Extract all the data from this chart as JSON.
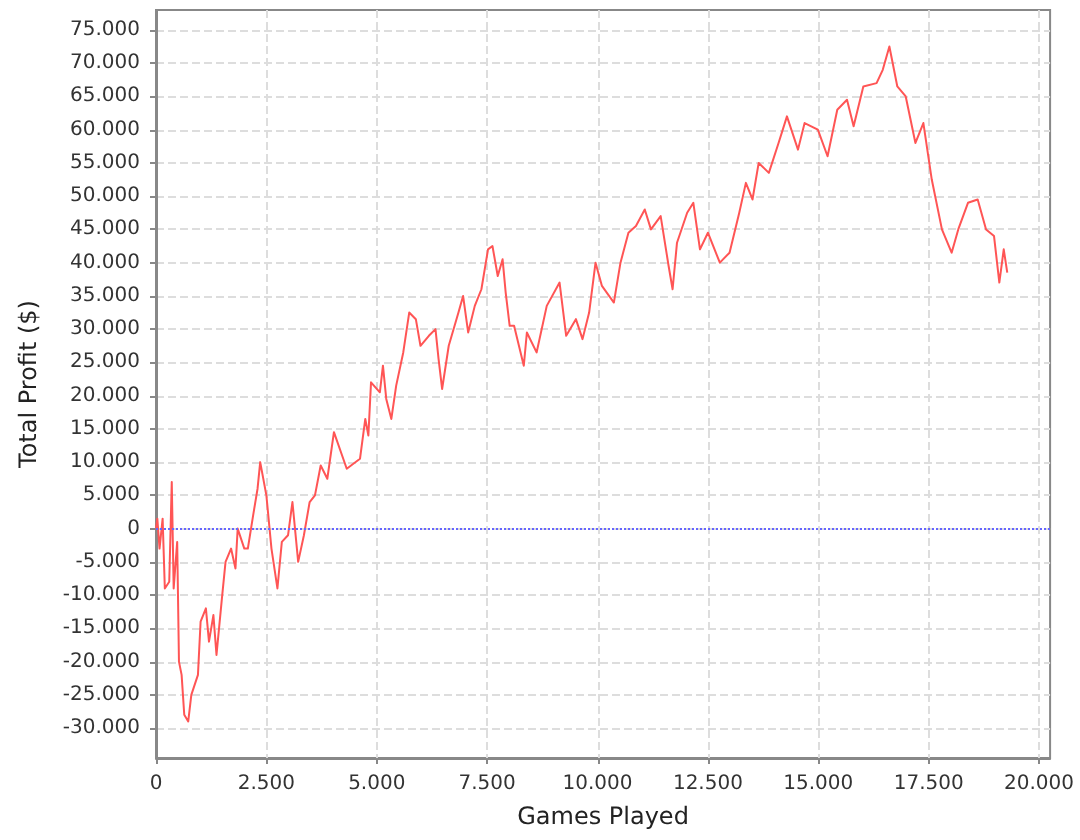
{
  "chart_data": {
    "type": "line",
    "xlabel": "Games Played",
    "ylabel": "Total Profit ($)",
    "xlim": [
      0,
      20250
    ],
    "ylim": [
      -34500,
      78000
    ],
    "xticks": [
      0,
      {
        "value": 2500,
        "label": "2.500"
      },
      {
        "value": 5000,
        "label": "5.000"
      },
      {
        "value": 7500,
        "label": "7.500"
      },
      {
        "value": 10000,
        "label": "10.000"
      },
      {
        "value": 12500,
        "label": "12.500"
      },
      {
        "value": 15000,
        "label": "15.000"
      },
      {
        "value": 17500,
        "label": "17.500"
      },
      {
        "value": 20000,
        "label": "20.000"
      }
    ],
    "yticks": [
      {
        "value": -30000,
        "label": "-30.000"
      },
      {
        "value": -25000,
        "label": "-25.000"
      },
      {
        "value": -20000,
        "label": "-20.000"
      },
      {
        "value": -15000,
        "label": "-15.000"
      },
      {
        "value": -10000,
        "label": "-10.000"
      },
      {
        "value": -5000,
        "label": "-5.000"
      },
      0,
      {
        "value": 5000,
        "label": "5.000"
      },
      {
        "value": 10000,
        "label": "10.000"
      },
      {
        "value": 15000,
        "label": "15.000"
      },
      {
        "value": 20000,
        "label": "20.000"
      },
      {
        "value": 25000,
        "label": "25.000"
      },
      {
        "value": 30000,
        "label": "30.000"
      },
      {
        "value": 35000,
        "label": "35.000"
      },
      {
        "value": 40000,
        "label": "40.000"
      },
      {
        "value": 45000,
        "label": "45.000"
      },
      {
        "value": 50000,
        "label": "50.000"
      },
      {
        "value": 55000,
        "label": "55.000"
      },
      {
        "value": 60000,
        "label": "60.000"
      },
      {
        "value": 65000,
        "label": "65.000"
      },
      {
        "value": 70000,
        "label": "70.000"
      },
      {
        "value": 75000,
        "label": "75.000"
      }
    ],
    "grid": true,
    "marker": "none",
    "line_style": "solid",
    "ref_lines": [
      {
        "axis": "y",
        "value": 0,
        "color": "#6666ff",
        "line_style": "dotted"
      }
    ],
    "series": [
      {
        "color": "#ff5555",
        "x": [
          0,
          30,
          80,
          150,
          200,
          300,
          357,
          400,
          480,
          520,
          580,
          640,
          730,
          800,
          950,
          1010,
          1130,
          1200,
          1300,
          1370,
          1500,
          1575,
          1700,
          1800,
          1850,
          2000,
          2080,
          2200,
          2300,
          2360,
          2500,
          2615,
          2750,
          2850,
          2990,
          3090,
          3220,
          3350,
          3480,
          3600,
          3730,
          3880,
          4030,
          4320,
          4620,
          4740,
          4810,
          4870,
          5070,
          5140,
          5215,
          5330,
          5440,
          5600,
          5735,
          5885,
          5990,
          6180,
          6330,
          6400,
          6480,
          6630,
          6850,
          6955,
          7070,
          7220,
          7370,
          7520,
          7620,
          7740,
          7850,
          7920,
          8010,
          8110,
          8330,
          8400,
          8620,
          8850,
          9140,
          9290,
          9510,
          9660,
          9810,
          9955,
          10100,
          10370,
          10520,
          10700,
          10870,
          11070,
          11210,
          11430,
          11610,
          11700,
          11800,
          12030,
          12170,
          12320,
          12500,
          12770,
          12990,
          13210,
          13360,
          13510,
          13650,
          13880,
          14100,
          14290,
          14540,
          14690,
          14990,
          15210,
          15430,
          15650,
          15800,
          16020,
          16320,
          16460,
          16610,
          16790,
          16980,
          17200,
          17380,
          17570,
          17800,
          18020,
          18170,
          18390,
          18610,
          18800,
          18980,
          19100,
          19200,
          19280
        ],
        "values": [
          0,
          1500,
          -3000,
          1500,
          -9000,
          -8000,
          7000,
          -9000,
          -2000,
          -20000,
          -22000,
          -28000,
          -29000,
          -25000,
          -22000,
          -14000,
          -12000,
          -17000,
          -13000,
          -19000,
          -10000,
          -5000,
          -3000,
          -6000,
          0,
          -3000,
          -3000,
          2000,
          6000,
          10000,
          5000,
          -3000,
          -9000,
          -2000,
          -1000,
          4000,
          -5000,
          -1000,
          4000,
          5000,
          9500,
          7500,
          14500,
          9000,
          10500,
          16500,
          14000,
          22000,
          20500,
          24500,
          19500,
          16500,
          21500,
          26500,
          32500,
          31500,
          27500,
          29000,
          30000,
          25500,
          21000,
          27500,
          32500,
          35000,
          29500,
          33500,
          36000,
          42000,
          42500,
          38000,
          40500,
          35500,
          30500,
          30500,
          24500,
          29500,
          26500,
          33500,
          37000,
          29000,
          31500,
          28500,
          32500,
          40000,
          36500,
          34000,
          40000,
          44500,
          45500,
          48000,
          45000,
          47000,
          39500,
          36000,
          43000,
          47500,
          49000,
          42000,
          44500,
          40000,
          41500,
          47500,
          52000,
          49500,
          55000,
          53500,
          58000,
          62000,
          57000,
          61000,
          60000,
          56000,
          63000,
          64500,
          60500,
          66500,
          67000,
          69000,
          72500,
          66500,
          65000,
          58000,
          61000,
          52500,
          45000,
          41500,
          45000,
          49000,
          49500,
          45000,
          44000,
          37000,
          42000,
          38500
        ]
      }
    ]
  }
}
